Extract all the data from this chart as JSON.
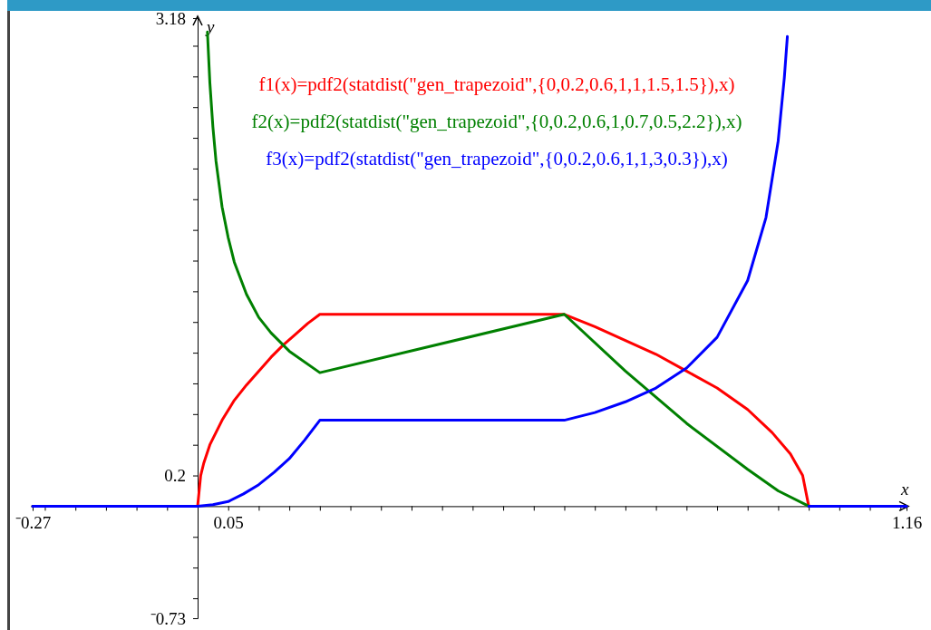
{
  "chart_data": {
    "type": "line",
    "xlabel": "x",
    "ylabel": "y",
    "legend": "top",
    "line_style": "solid",
    "xlim": [
      -0.27,
      1.16
    ],
    "ylim": [
      -0.73,
      3.18
    ],
    "xticks": [
      {
        "value": -0.27,
        "label": "⁻0.27"
      },
      {
        "value": -0.25,
        "label": null
      },
      {
        "value": -0.2,
        "label": null
      },
      {
        "value": -0.15,
        "label": null
      },
      {
        "value": -0.1,
        "label": null
      },
      {
        "value": -0.05,
        "label": null
      },
      0.05,
      {
        "value": 0.1,
        "label": null
      },
      {
        "value": 0.15,
        "label": null
      },
      {
        "value": 0.2,
        "label": null
      },
      {
        "value": 0.25,
        "label": null
      },
      {
        "value": 0.3,
        "label": null
      },
      {
        "value": 0.35,
        "label": null
      },
      {
        "value": 0.4,
        "label": null
      },
      {
        "value": 0.45,
        "label": null
      },
      {
        "value": 0.5,
        "label": null
      },
      {
        "value": 0.55,
        "label": null
      },
      {
        "value": 0.6,
        "label": null
      },
      {
        "value": 0.65,
        "label": null
      },
      {
        "value": 0.7,
        "label": null
      },
      {
        "value": 0.75,
        "label": null
      },
      {
        "value": 0.8,
        "label": null
      },
      {
        "value": 0.85,
        "label": null
      },
      {
        "value": 0.9,
        "label": null
      },
      {
        "value": 0.95,
        "label": null
      },
      {
        "value": 1,
        "label": null
      },
      {
        "value": 1.05,
        "label": null
      },
      {
        "value": 1.1,
        "label": null
      },
      {
        "value": 1.15,
        "label": null
      },
      1.16
    ],
    "yticks": [
      {
        "value": -0.73,
        "label": "⁻0.73"
      },
      {
        "value": -0.6,
        "label": null
      },
      {
        "value": -0.4,
        "label": null
      },
      {
        "value": -0.2,
        "label": null
      },
      0.2,
      {
        "value": 0.4,
        "label": null
      },
      {
        "value": 0.6,
        "label": null
      },
      {
        "value": 0.8,
        "label": null
      },
      {
        "value": 1,
        "label": null
      },
      {
        "value": 1.2,
        "label": null
      },
      {
        "value": 1.4,
        "label": null
      },
      {
        "value": 1.6,
        "label": null
      },
      {
        "value": 1.8,
        "label": null
      },
      {
        "value": 2,
        "label": null
      },
      {
        "value": 2.2,
        "label": null
      },
      {
        "value": 2.4,
        "label": null
      },
      {
        "value": 2.6,
        "label": null
      },
      {
        "value": 2.8,
        "label": null
      },
      {
        "value": 3,
        "label": null
      },
      3.18
    ],
    "series": [
      {
        "name": "f1(x)=pdf2(statdist(\"gen_trapezoid\",{0,0.2,0.6,1,1,1.5,1.5}),x)",
        "color": "#ff0000",
        "x": [
          -0.27,
          0,
          0.005,
          0.01,
          0.02,
          0.04,
          0.06,
          0.08,
          0.1,
          0.12,
          0.14,
          0.16,
          0.18,
          0.2,
          0.6,
          0.65,
          0.7,
          0.75,
          0.8,
          0.85,
          0.9,
          0.94,
          0.97,
          0.99,
          1,
          1.16
        ],
        "values": [
          0,
          0,
          0.2,
          0.28,
          0.4,
          0.56,
          0.69,
          0.79,
          0.88,
          0.97,
          1.05,
          1.12,
          1.19,
          1.25,
          1.25,
          1.17,
          1.08,
          0.99,
          0.88,
          0.77,
          0.63,
          0.48,
          0.34,
          0.2,
          0,
          0
        ]
      },
      {
        "name": "f2(x)=pdf2(statdist(\"gen_trapezoid\",{0,0.2,0.6,1,0.7,0.5,2.2}),x)",
        "color": "#008000",
        "x": [
          -0.27,
          0,
          0.01,
          0.016,
          0.02,
          0.025,
          0.03,
          0.04,
          0.05,
          0.06,
          0.08,
          0.1,
          0.12,
          0.15,
          0.2,
          0.6,
          0.7,
          0.8,
          0.9,
          0.95,
          1,
          1.16
        ],
        "values": [
          0,
          0,
          null,
          3.09,
          2.76,
          2.47,
          2.25,
          1.95,
          1.75,
          1.59,
          1.38,
          1.23,
          1.13,
          1.01,
          0.87,
          1.25,
          0.88,
          0.54,
          0.24,
          0.1,
          0,
          0
        ]
      },
      {
        "name": "f3(x)=pdf2(statdist(\"gen_trapezoid\",{0,0.2,0.6,1,1,3,0.3}),x)",
        "color": "#0000ff",
        "x": [
          -0.27,
          0,
          0.025,
          0.05,
          0.075,
          0.1,
          0.125,
          0.15,
          0.175,
          0.2,
          0.6,
          0.65,
          0.7,
          0.75,
          0.8,
          0.85,
          0.9,
          0.93,
          0.95,
          0.96,
          0.965,
          0.99,
          1,
          1.16
        ],
        "values": [
          0,
          0,
          0.01,
          0.03,
          0.08,
          0.14,
          0.22,
          0.31,
          0.43,
          0.56,
          0.56,
          0.61,
          0.68,
          0.77,
          0.9,
          1.1,
          1.47,
          1.88,
          2.38,
          2.79,
          3.06,
          null,
          0,
          0
        ]
      }
    ]
  }
}
